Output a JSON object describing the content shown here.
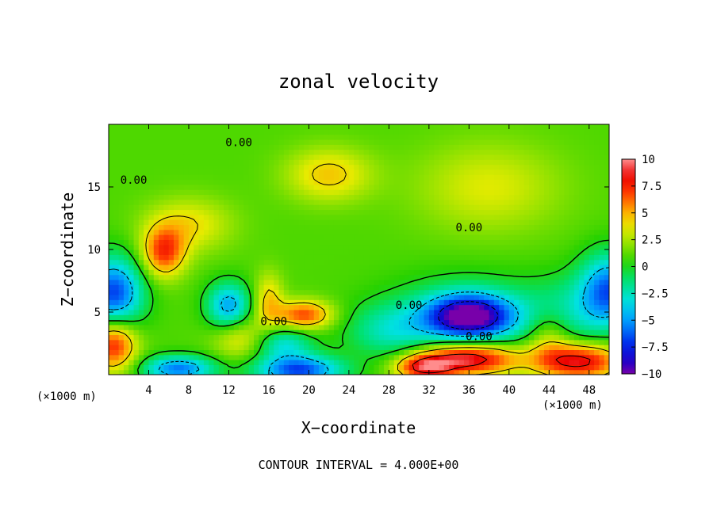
{
  "chart_data": {
    "type": "heatmap",
    "title": "zonal velocity",
    "xlabel": "X−coordinate",
    "ylabel": "Z−coordinate",
    "x_unit_left": "(×1000 m)",
    "x_unit_right": "(×1000 m)",
    "x_ticks": [
      4,
      8,
      12,
      16,
      20,
      24,
      28,
      32,
      36,
      40,
      44,
      48
    ],
    "y_ticks": [
      5,
      10,
      15
    ],
    "xlim": [
      0,
      50
    ],
    "ylim": [
      0,
      20
    ],
    "colorbar": {
      "vmin": -10,
      "vmax": 10,
      "tick_values": [
        10,
        7.5,
        5,
        2.5,
        0,
        -2.5,
        -5,
        -7.5,
        -10
      ],
      "tick_labels": [
        "10",
        "7.5",
        "5",
        "2.5",
        "0",
        "−2.5",
        "−5",
        "−7.5",
        "−10"
      ]
    },
    "contour_interval_text": "CONTOUR INTERVAL = 4.000E+00",
    "contour_labels": [
      {
        "text": "0.00",
        "x": 13,
        "y": 18.5
      },
      {
        "text": "0.00",
        "x": 2.5,
        "y": 15.5
      },
      {
        "text": "0.00",
        "x": 36,
        "y": 11.7
      },
      {
        "text": "0.00",
        "x": 30,
        "y": 5.5
      },
      {
        "text": "0.00",
        "x": 16.5,
        "y": 4.2
      },
      {
        "text": "0.00",
        "x": 37,
        "y": 3.0
      }
    ],
    "field_features": [
      {
        "x": 36,
        "y": 4.7,
        "value": -10,
        "sx": 3.0,
        "sy": 1.2
      },
      {
        "x": 36,
        "y": 4.7,
        "value": -3,
        "sx": 5.5,
        "sy": 2.2
      },
      {
        "x": 0.5,
        "y": 6.5,
        "value": -8,
        "sx": 2.0,
        "sy": 2.0
      },
      {
        "x": 50,
        "y": 6.8,
        "value": -7,
        "sx": 2.0,
        "sy": 2.0
      },
      {
        "x": 12,
        "y": 5.5,
        "value": -6,
        "sx": 1.5,
        "sy": 1.3
      },
      {
        "x": 17.5,
        "y": 2.5,
        "value": -4,
        "sx": 2.0,
        "sy": 0.9
      },
      {
        "x": 19,
        "y": 0.4,
        "value": -8,
        "sx": 3.0,
        "sy": 0.8
      },
      {
        "x": 7,
        "y": 0.5,
        "value": -7,
        "sx": 2.5,
        "sy": 0.7
      },
      {
        "x": 28,
        "y": 3.5,
        "value": -3,
        "sx": 3.0,
        "sy": 1.5
      },
      {
        "x": 46,
        "y": 5.0,
        "value": -2.5,
        "sx": 3.0,
        "sy": 2.0
      },
      {
        "x": 36,
        "y": 1.3,
        "value": 9,
        "sx": 3.5,
        "sy": 0.9
      },
      {
        "x": 47,
        "y": 1.1,
        "value": 8,
        "sx": 3.0,
        "sy": 1.0
      },
      {
        "x": 31.5,
        "y": 0.6,
        "value": 7,
        "sx": 2.0,
        "sy": 0.7
      },
      {
        "x": 0.5,
        "y": 2.5,
        "value": 7,
        "sx": 1.6,
        "sy": 1.5
      },
      {
        "x": 5.5,
        "y": 9.8,
        "value": 6,
        "sx": 1.5,
        "sy": 1.4
      },
      {
        "x": 19.5,
        "y": 4.8,
        "value": 6,
        "sx": 2.0,
        "sy": 0.8
      },
      {
        "x": 16,
        "y": 6.0,
        "value": 3.5,
        "sx": 1.0,
        "sy": 1.5
      },
      {
        "x": 13,
        "y": 3.0,
        "value": 3,
        "sx": 1.8,
        "sy": 1.2
      },
      {
        "x": 8,
        "y": 12,
        "value": 3,
        "sx": 3.0,
        "sy": 1.5
      },
      {
        "x": 22,
        "y": 16,
        "value": 3.5,
        "sx": 3.0,
        "sy": 1.5
      },
      {
        "x": 38,
        "y": 15,
        "value": 2.5,
        "sx": 5.0,
        "sy": 2.5
      },
      {
        "x": 44,
        "y": 3.0,
        "value": 3,
        "sx": 1.5,
        "sy": 1.5
      }
    ]
  }
}
